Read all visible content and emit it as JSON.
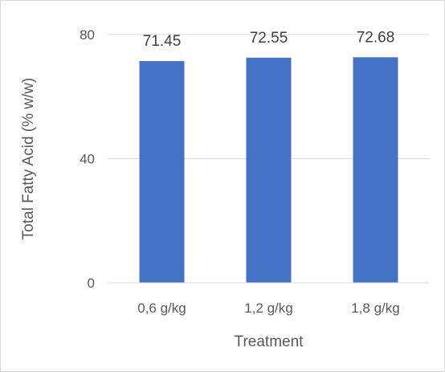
{
  "chart_data": {
    "type": "bar",
    "categories": [
      "0,6 g/kg",
      "1,2 g/kg",
      "1,8 g/kg"
    ],
    "values": [
      71.45,
      72.55,
      72.68
    ],
    "data_labels": [
      "71.45",
      "72.55",
      "72.68"
    ],
    "xlabel": "Treatment",
    "ylabel": "Total Fatty Acid (% w/w)",
    "ylim": [
      0,
      80
    ],
    "yticks": [
      0,
      40,
      80
    ],
    "ytick_labels": [
      "0",
      "40",
      "80"
    ],
    "grid": true,
    "legend": "none",
    "bar_color": "#4472c4",
    "grid_color": "#d9d9d9"
  }
}
